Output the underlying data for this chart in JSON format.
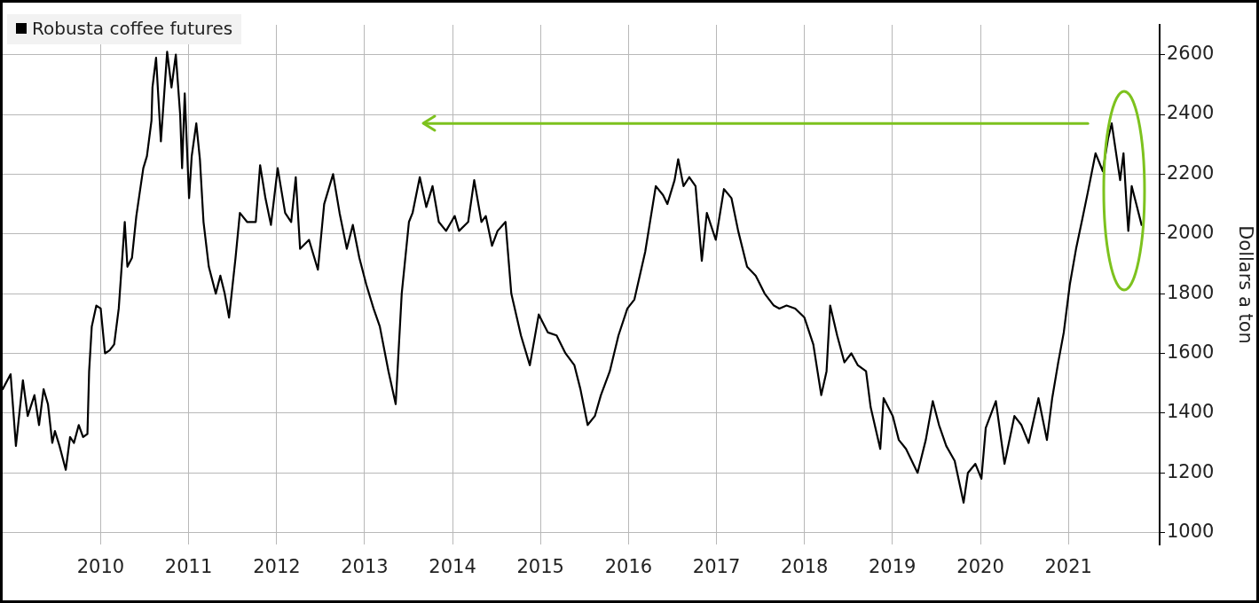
{
  "chart_data": {
    "type": "line",
    "ylabel": "Dollars a ton",
    "legend": "top left",
    "grid": true,
    "line_style": "solid",
    "xlim": [
      "2009-05-20",
      "2022-07-15"
    ],
    "ylim": [
      960,
      2700
    ],
    "yticks": [
      1000,
      1200,
      1400,
      1600,
      1800,
      2000,
      2200,
      2400,
      2600
    ],
    "xticks": [
      {
        "value": "2010-07-01",
        "label": "2010"
      },
      {
        "value": "2011-07-01",
        "label": "2011"
      },
      {
        "value": "2012-07-01",
        "label": "2012"
      },
      {
        "value": "2013-07-01",
        "label": "2013"
      },
      {
        "value": "2014-07-01",
        "label": "2014"
      },
      {
        "value": "2015-07-01",
        "label": "2015"
      },
      {
        "value": "2016-07-01",
        "label": "2016"
      },
      {
        "value": "2017-07-01",
        "label": "2017"
      },
      {
        "value": "2018-07-01",
        "label": "2018"
      },
      {
        "value": "2019-07-01",
        "label": "2019"
      },
      {
        "value": "2020-07-01",
        "label": "2020"
      },
      {
        "value": "2021-07-01",
        "label": "2021"
      }
    ],
    "series": [
      {
        "color": "#7dc21e",
        "x": [
          "2014-03-07",
          "2021-09-20"
        ],
        "values": [
          2370,
          2370
        ]
      },
      {
        "name": "Robusta coffee futures",
        "color": "#000000",
        "x": [
          "2009-05-20",
          "2009-06-22",
          "2009-07-14",
          "2009-08-12",
          "2009-09-01",
          "2009-09-29",
          "2009-10-18",
          "2009-11-06",
          "2009-11-24",
          "2009-12-12",
          "2009-12-23",
          "2010-01-11",
          "2010-02-06",
          "2010-02-24",
          "2010-03-12",
          "2010-04-01",
          "2010-04-19",
          "2010-05-07",
          "2010-05-14",
          "2010-05-25",
          "2010-06-13",
          "2010-07-01",
          "2010-07-19",
          "2010-08-07",
          "2010-08-26",
          "2010-09-14",
          "2010-10-09",
          "2010-10-20",
          "2010-11-08",
          "2010-11-26",
          "2010-12-14",
          "2010-12-25",
          "2011-01-09",
          "2011-01-28",
          "2011-02-01",
          "2011-02-16",
          "2011-03-08",
          "2011-04-03",
          "2011-04-21",
          "2011-05-09",
          "2011-05-27",
          "2011-06-04",
          "2011-06-15",
          "2011-07-03",
          "2011-07-14",
          "2011-08-02",
          "2011-08-17",
          "2011-09-01",
          "2011-09-23",
          "2011-10-22",
          "2011-11-10",
          "2011-11-28",
          "2011-12-16",
          "2012-01-12",
          "2012-01-30",
          "2012-02-29",
          "2012-04-05",
          "2012-04-23",
          "2012-05-15",
          "2012-06-07",
          "2012-07-05",
          "2012-08-05",
          "2012-08-30",
          "2012-09-18",
          "2012-10-06",
          "2012-11-12",
          "2012-12-19",
          "2013-01-14",
          "2013-02-20",
          "2013-03-19",
          "2013-04-18",
          "2013-05-13",
          "2013-06-09",
          "2013-07-08",
          "2013-08-07",
          "2013-09-02",
          "2013-10-08",
          "2013-11-07",
          "2013-12-02",
          "2014-01-01",
          "2014-01-16",
          "2014-02-15",
          "2014-03-14",
          "2014-04-09",
          "2014-05-05",
          "2014-06-04",
          "2014-07-10",
          "2014-07-28",
          "2014-09-04",
          "2014-09-29",
          "2014-10-29",
          "2014-11-16",
          "2014-12-12",
          "2015-01-04",
          "2015-02-06",
          "2015-03-02",
          "2015-04-11",
          "2015-05-18",
          "2015-06-24",
          "2015-08-01",
          "2015-09-06",
          "2015-10-13",
          "2015-11-19",
          "2015-12-14",
          "2016-01-13",
          "2016-02-12",
          "2016-03-08",
          "2016-04-14",
          "2016-05-20",
          "2016-06-26",
          "2016-07-25",
          "2016-09-08",
          "2016-10-22",
          "2016-11-21",
          "2016-12-09",
          "2017-01-08",
          "2017-01-23",
          "2017-02-14",
          "2017-03-10",
          "2017-04-05",
          "2017-05-01",
          "2017-05-22",
          "2017-06-28",
          "2017-08-01",
          "2017-09-01",
          "2017-09-29",
          "2017-11-05",
          "2017-12-11",
          "2018-01-17",
          "2018-02-24",
          "2018-03-19",
          "2018-04-18",
          "2018-05-24",
          "2018-07-01",
          "2018-08-07",
          "2018-09-09",
          "2018-10-01",
          "2018-10-16",
          "2018-11-14",
          "2018-12-14",
          "2019-01-12",
          "2019-02-08",
          "2019-03-14",
          "2019-04-02",
          "2019-05-12",
          "2019-05-26",
          "2019-07-03",
          "2019-07-28",
          "2019-08-27",
          "2019-10-14",
          "2019-11-17",
          "2019-12-16",
          "2020-01-11",
          "2020-02-10",
          "2020-03-16",
          "2020-04-22",
          "2020-05-10",
          "2020-06-10",
          "2020-07-05",
          "2020-07-23",
          "2020-09-03",
          "2020-10-09",
          "2020-11-19",
          "2020-12-18",
          "2021-01-17",
          "2021-02-27",
          "2021-04-03",
          "2021-04-25",
          "2021-05-20",
          "2021-06-12",
          "2021-07-07",
          "2021-08-02",
          "2021-08-28",
          "2021-09-20",
          "2021-10-22",
          "2021-11-21",
          "2021-12-13",
          "2021-12-28",
          "2022-01-19",
          "2022-02-01",
          "2022-02-15",
          "2022-03-01",
          "2022-03-07",
          "2022-03-21",
          "2022-04-09",
          "2022-05-01"
        ],
        "values": [
          1480,
          1530,
          1290,
          1510,
          1390,
          1460,
          1360,
          1480,
          1430,
          1300,
          1340,
          1290,
          1210,
          1320,
          1300,
          1360,
          1320,
          1330,
          1540,
          1690,
          1760,
          1750,
          1600,
          1610,
          1630,
          1750,
          2040,
          1890,
          1920,
          2060,
          2160,
          2220,
          2260,
          2380,
          2490,
          2590,
          2310,
          2610,
          2490,
          2600,
          2400,
          2220,
          2470,
          2120,
          2260,
          2370,
          2250,
          2040,
          1890,
          1800,
          1860,
          1800,
          1720,
          1920,
          2070,
          2040,
          2040,
          2230,
          2120,
          2030,
          2220,
          2070,
          2040,
          2190,
          1950,
          1980,
          1880,
          2100,
          2200,
          2070,
          1950,
          2030,
          1920,
          1830,
          1750,
          1690,
          1540,
          1430,
          1800,
          2040,
          2070,
          2190,
          2090,
          2160,
          2040,
          2010,
          2060,
          2010,
          2040,
          2180,
          2040,
          2060,
          1960,
          2010,
          2040,
          1800,
          1660,
          1560,
          1730,
          1670,
          1660,
          1600,
          1560,
          1480,
          1360,
          1390,
          1460,
          1540,
          1660,
          1750,
          1780,
          1940,
          2160,
          2130,
          2100,
          2180,
          2250,
          2160,
          2190,
          2160,
          1910,
          2070,
          1980,
          2150,
          2120,
          2010,
          1890,
          1860,
          1800,
          1760,
          1750,
          1760,
          1750,
          1720,
          1630,
          1460,
          1540,
          1760,
          1660,
          1570,
          1600,
          1560,
          1540,
          1420,
          1280,
          1450,
          1390,
          1310,
          1280,
          1200,
          1310,
          1440,
          1360,
          1290,
          1240,
          1100,
          1200,
          1230,
          1180,
          1350,
          1440,
          1230,
          1390,
          1360,
          1300,
          1450,
          1310,
          1450,
          1570,
          1670,
          1830,
          1950,
          2050,
          2140,
          2270,
          2210,
          2320,
          2370,
          2250,
          2180,
          2270,
          2080,
          2010,
          2160,
          2100,
          2030
        ]
      }
    ]
  }
}
